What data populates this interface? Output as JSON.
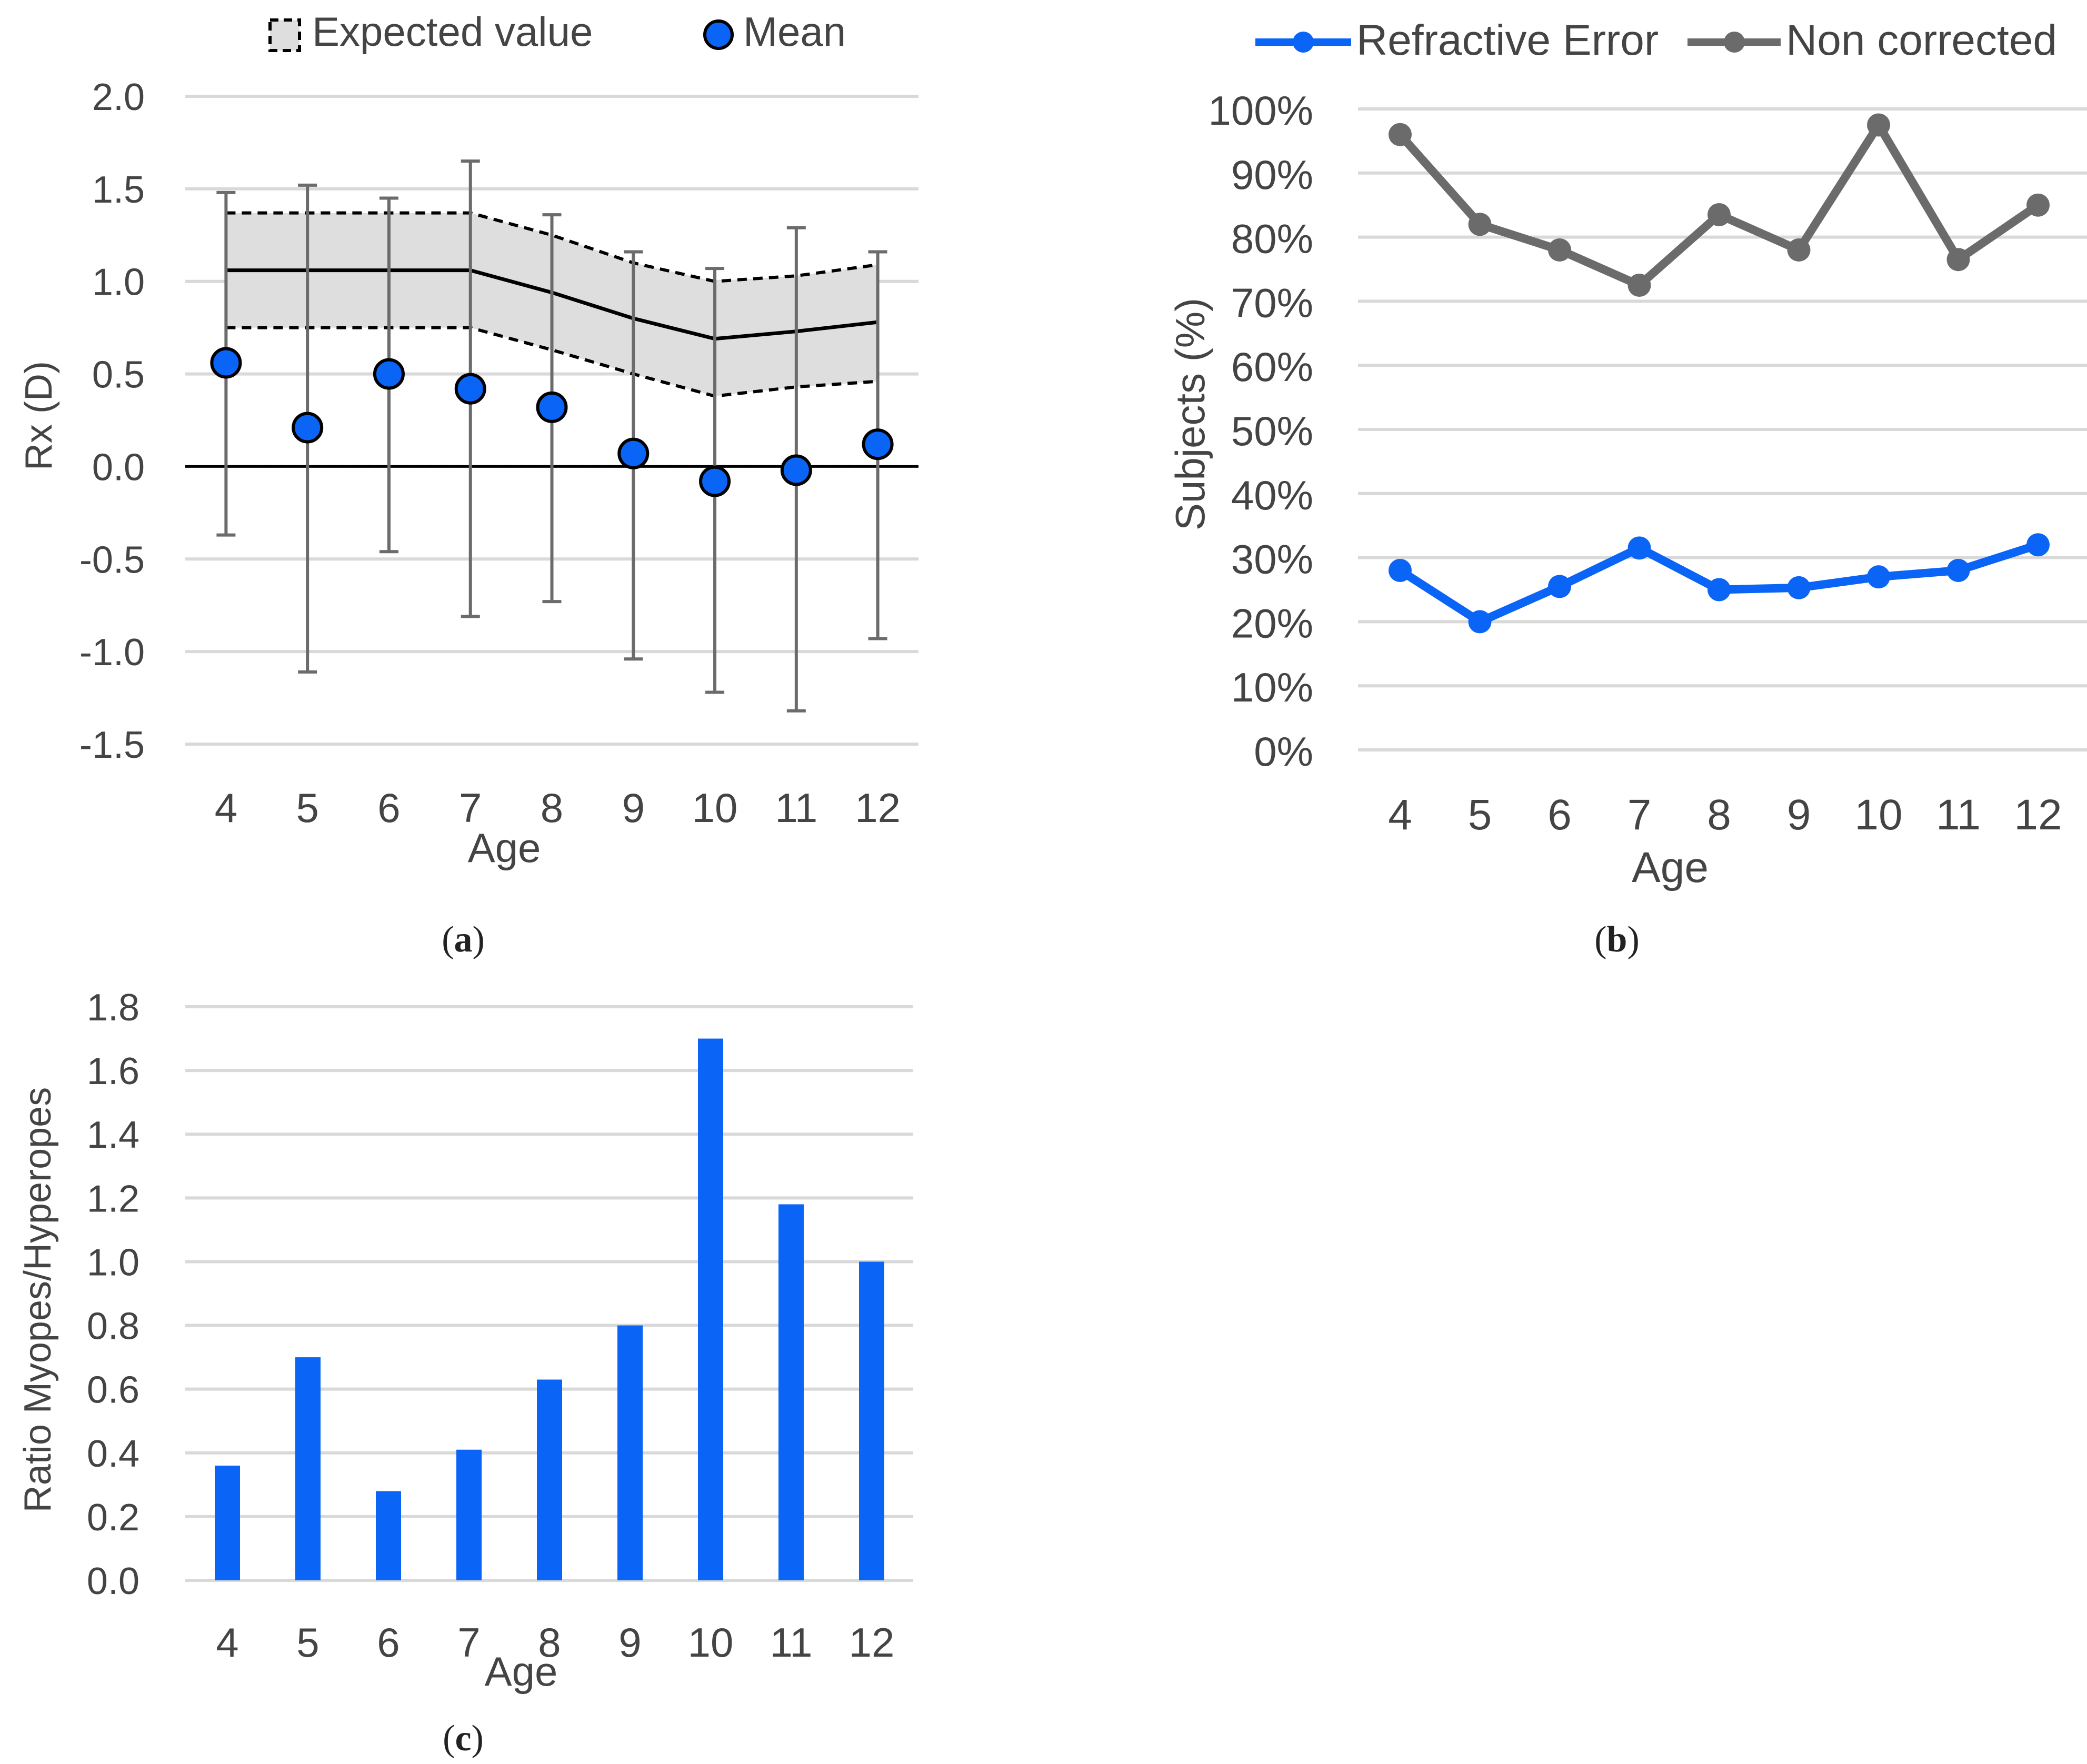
{
  "panels": {
    "a": {
      "prefix": "(",
      "letter": "a",
      "suffix": ")"
    },
    "b": {
      "prefix": "(",
      "letter": "b",
      "suffix": ")"
    },
    "c": {
      "prefix": "(",
      "letter": "c",
      "suffix": ")"
    }
  },
  "colors": {
    "blue": "#0a64f5",
    "gray": "#6b6b6b",
    "grid": "#d9d9d9",
    "band": "#dedede",
    "text": "#444444"
  },
  "chart_data": [
    {
      "id": "a",
      "type": "scatter",
      "title": "",
      "xlabel": "Age",
      "ylabel": "Rx (D)",
      "categories": [
        "4",
        "5",
        "6",
        "7",
        "8",
        "9",
        "10",
        "11",
        "12"
      ],
      "ylim": [
        -1.5,
        2.0
      ],
      "yticks": [
        "2.0",
        "1.5",
        "1.0",
        "0.5",
        "0.0",
        "-0.5",
        "-1.0",
        "-1.5"
      ],
      "legend": [
        "Expected value",
        "Mean"
      ],
      "legend_position": "top",
      "mean": [
        0.56,
        0.21,
        0.5,
        0.42,
        0.32,
        0.07,
        -0.08,
        -0.02,
        0.12
      ],
      "error_upper": [
        1.48,
        1.52,
        1.45,
        1.65,
        1.36,
        1.16,
        1.07,
        1.29,
        1.16
      ],
      "error_lower": [
        -0.37,
        -1.11,
        -0.46,
        -0.81,
        -0.73,
        -1.04,
        -1.22,
        -1.32,
        -0.93
      ],
      "expected": [
        1.06,
        1.06,
        1.06,
        1.06,
        0.94,
        0.8,
        0.69,
        0.73,
        0.78
      ],
      "expected_upper": [
        1.37,
        1.37,
        1.37,
        1.37,
        1.25,
        1.1,
        1.0,
        1.03,
        1.09
      ],
      "expected_lower": [
        0.75,
        0.75,
        0.75,
        0.75,
        0.63,
        0.5,
        0.38,
        0.43,
        0.46
      ],
      "grid": true
    },
    {
      "id": "b",
      "type": "line",
      "title": "",
      "xlabel": "Age",
      "ylabel": "Subjects (%)",
      "categories": [
        "4",
        "5",
        "6",
        "7",
        "8",
        "9",
        "10",
        "11",
        "12"
      ],
      "ylim": [
        0,
        100
      ],
      "yticks": [
        "100%",
        "90%",
        "80%",
        "70%",
        "60%",
        "50%",
        "40%",
        "30%",
        "20%",
        "10%",
        "0%"
      ],
      "legend_position": "top",
      "series": [
        {
          "name": "Refractive Error",
          "values": [
            28,
            20,
            25.5,
            31.5,
            25,
            25.3,
            27,
            28,
            32
          ]
        },
        {
          "name": "Non corrected",
          "values": [
            96,
            82,
            78,
            72.5,
            83.5,
            78,
            97.5,
            76.5,
            85
          ]
        }
      ],
      "grid": true
    },
    {
      "id": "c",
      "type": "bar",
      "title": "",
      "xlabel": "Age",
      "ylabel": "Ratio Myopes/Hyperopes",
      "categories": [
        "4",
        "5",
        "6",
        "7",
        "8",
        "9",
        "10",
        "11",
        "12"
      ],
      "ylim": [
        0,
        1.8
      ],
      "yticks": [
        "1.8",
        "1.6",
        "1.4",
        "1.2",
        "1.0",
        "0.8",
        "0.6",
        "0.4",
        "0.2",
        "0.0"
      ],
      "values": [
        0.36,
        0.7,
        0.28,
        0.41,
        0.63,
        0.8,
        1.7,
        1.18,
        1.0
      ],
      "grid": true
    }
  ]
}
